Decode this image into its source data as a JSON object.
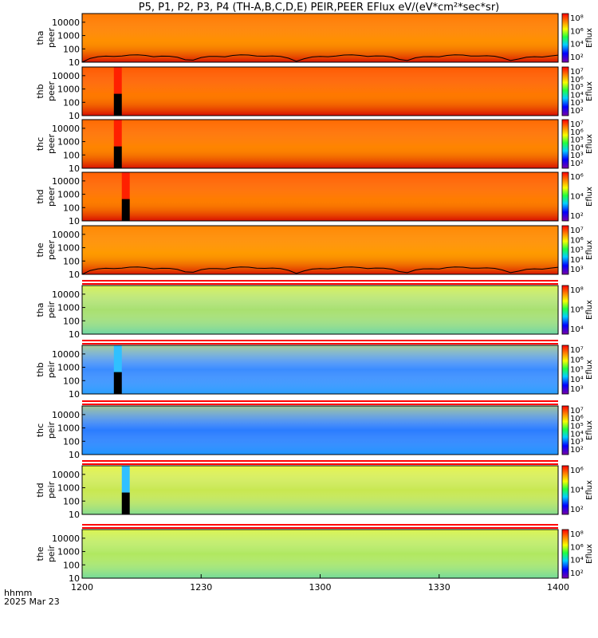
{
  "chart_data": {
    "type": "heatmap",
    "title": "P5, P1, P2, P3, P4 (TH-A,B,C,D,E) PEIR,PEER EFlux eV/(eV*cm²*sec*sr)",
    "x_axis": {
      "tick_labels": [
        "1200",
        "1230",
        "1300",
        "1330",
        "1400"
      ],
      "range": [
        "1200",
        "1400"
      ],
      "corner_label": "hhmm",
      "date_label": "2025 Mar 23"
    },
    "panels": [
      {
        "probe": "tha",
        "species": "peer",
        "y_ticks": [
          "10",
          "100",
          "1000",
          "10000"
        ],
        "colorbar_ticks": [
          "10²",
          "10⁴",
          "10⁶",
          "10⁸"
        ],
        "colorbar_label": "Eflux",
        "base_color": "#ff7a00",
        "spacecraft_potential_line": true
      },
      {
        "probe": "thb",
        "species": "peer",
        "y_ticks": [
          "10",
          "100",
          "1000",
          "10000"
        ],
        "colorbar_ticks": [
          "10²",
          "10³",
          "10⁴",
          "10⁵",
          "10⁶",
          "10⁷"
        ],
        "colorbar_label": "Eflux",
        "base_color": "#ff5a00",
        "gap_start": "1208",
        "gap_end": "1210"
      },
      {
        "probe": "thc",
        "species": "peer",
        "y_ticks": [
          "10",
          "100",
          "1000",
          "10000"
        ],
        "colorbar_ticks": [
          "10²",
          "10³",
          "10⁴",
          "10⁵",
          "10⁶",
          "10⁷"
        ],
        "colorbar_label": "Eflux",
        "base_color": "#ff6a00",
        "gap_start": "1208",
        "gap_end": "1210"
      },
      {
        "probe": "thd",
        "species": "peer",
        "y_ticks": [
          "10",
          "100",
          "1000",
          "10000"
        ],
        "colorbar_ticks": [
          "10²",
          "10⁴",
          "10⁶"
        ],
        "colorbar_label": "Eflux",
        "base_color": "#ff6000",
        "gap_start": "1210",
        "gap_end": "1212"
      },
      {
        "probe": "the",
        "species": "peer",
        "y_ticks": [
          "10",
          "100",
          "1000",
          "10000"
        ],
        "colorbar_ticks": [
          "10³",
          "10⁴",
          "10⁵",
          "10⁶",
          "10⁷"
        ],
        "colorbar_label": "Eflux",
        "base_color": "#ff8800",
        "spacecraft_potential_line": true
      },
      {
        "probe": "tha",
        "species": "peir",
        "y_ticks": [
          "10",
          "100",
          "1000",
          "10000"
        ],
        "colorbar_ticks": [
          "10⁴",
          "10⁶",
          "10⁸"
        ],
        "colorbar_label": "Eflux",
        "base_color": "#a8e070"
      },
      {
        "probe": "thb",
        "species": "peir",
        "y_ticks": [
          "10",
          "100",
          "1000",
          "10000"
        ],
        "colorbar_ticks": [
          "10³",
          "10⁴",
          "10⁵",
          "10⁶",
          "10⁷"
        ],
        "colorbar_label": "Eflux",
        "base_color": "#3a8cff",
        "gap_start": "1208",
        "gap_end": "1210"
      },
      {
        "probe": "thc",
        "species": "peir",
        "y_ticks": [
          "10",
          "100",
          "1000",
          "10000"
        ],
        "colorbar_ticks": [
          "10²",
          "10³",
          "10⁴",
          "10⁵",
          "10⁶",
          "10⁷"
        ],
        "colorbar_label": "Eflux",
        "base_color": "#2a7cff"
      },
      {
        "probe": "thd",
        "species": "peir",
        "y_ticks": [
          "10",
          "100",
          "1000",
          "10000"
        ],
        "colorbar_ticks": [
          "10²",
          "10⁴",
          "10⁶"
        ],
        "colorbar_label": "Eflux",
        "base_color": "#c8e850",
        "gap_start": "1210",
        "gap_end": "1212"
      },
      {
        "probe": "the",
        "species": "peir",
        "y_ticks": [
          "10",
          "100",
          "1000",
          "10000"
        ],
        "colorbar_ticks": [
          "10²",
          "10⁴",
          "10⁶",
          "10⁸"
        ],
        "colorbar_label": "Eflux",
        "base_color": "#b0e860"
      }
    ]
  }
}
